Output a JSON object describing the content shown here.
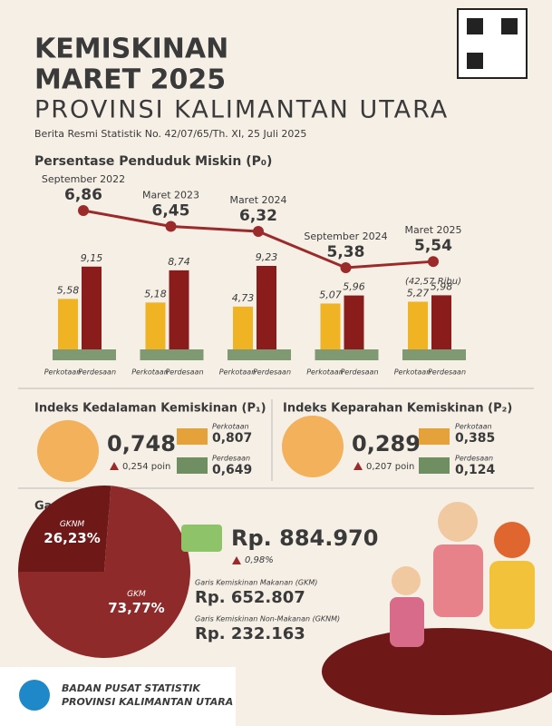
{
  "header": {
    "title_line1": "KEMISKINAN",
    "title_line2": "MARET 2025",
    "subtitle": "PROVINSI KALIMANTAN UTARA",
    "release": "Berita Resmi Statistik No. 42/07/65/Th. XI, 25 Juli 2025"
  },
  "poverty_chart": {
    "type": "line",
    "title": "Persentase Penduduk Miskin (P₀)",
    "categories": [
      "September 2022",
      "Maret 2023",
      "Maret 2024",
      "September 2024",
      "Maret 2025"
    ],
    "values": [
      6.86,
      6.45,
      6.32,
      5.38,
      5.54
    ],
    "value_labels": [
      "6,86",
      "6,45",
      "6,32",
      "5,38",
      "5,54"
    ],
    "color": "#9b2b2b",
    "note": "(42,57 Ribu)",
    "bars": {
      "type": "bar",
      "series": [
        {
          "name": "Perkotaan",
          "color": "#f0b323",
          "values": [
            5.58,
            5.18,
            4.73,
            5.07,
            5.27
          ],
          "value_labels": [
            "5,58",
            "5,18",
            "4,73",
            "5,07",
            "5,27"
          ]
        },
        {
          "name": "Perdesaan",
          "color": "#8b1c1c",
          "values": [
            9.15,
            8.74,
            9.23,
            5.96,
            5.98
          ],
          "value_labels": [
            "9,15",
            "8,74",
            "9,23",
            "5,96",
            "5,98"
          ]
        }
      ]
    }
  },
  "p1": {
    "title": "Indeks Kedalaman Kemiskinan (P₁)",
    "value": "0,748",
    "change": "0,254 poin",
    "urban_label": "Perkotaan",
    "urban_value": "0,807",
    "rural_label": "Perdesaan",
    "rural_value": "0,649"
  },
  "p2": {
    "title": "Indeks Keparahan Kemiskinan (P₂)",
    "value": "0,289",
    "change": "0,207 poin",
    "urban_label": "Perkotaan",
    "urban_value": "0,385",
    "rural_label": "Perdesaan",
    "rural_value": "0,124"
  },
  "poverty_line": {
    "title": "Garis Kemiskinan",
    "pie": {
      "type": "pie",
      "categories": [
        "GKNM",
        "GKM"
      ],
      "values": [
        26.23,
        73.77
      ],
      "value_labels": [
        "26,23%",
        "73,77%"
      ],
      "colors": [
        "#6e1818",
        "#8f2a2a"
      ]
    },
    "total": "Rp. 884.970",
    "change": "0,98%",
    "food_label": "Garis Kemiskinan Makanan (GKM)",
    "food_value": "Rp. 652.807",
    "nonfood_label": "Garis Kemiskinan Non-Makanan (GKNM)",
    "nonfood_value": "Rp. 232.163"
  },
  "footer": {
    "line1": "BADAN PUSAT STATISTIK",
    "line2": "PROVINSI KALIMANTAN UTARA"
  }
}
